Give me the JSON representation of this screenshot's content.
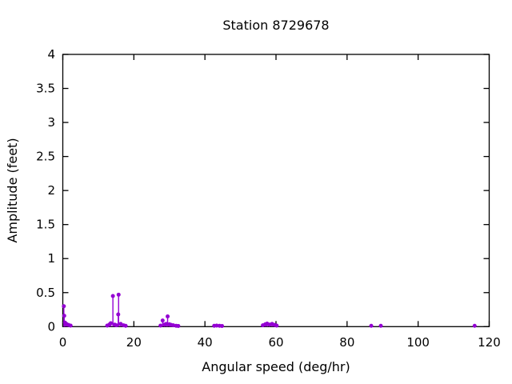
{
  "window": {
    "background": "#ffffff",
    "border_color": "#000000",
    "text_color": "#000000"
  },
  "chart_data": {
    "type": "scatter",
    "style": "points-with-impulse-stems",
    "title": "Station 8729678",
    "xlabel": "Angular speed (deg/hr)",
    "ylabel": "Amplitude (feet)",
    "xlim": [
      0,
      120
    ],
    "ylim": [
      0,
      4
    ],
    "x_ticks": [
      0,
      20,
      40,
      60,
      80,
      100,
      120
    ],
    "x_tick_labels": [
      "0",
      "20",
      "40",
      "60",
      "80",
      "100",
      "120"
    ],
    "y_ticks": [
      0,
      0.5,
      1,
      1.5,
      2,
      2.5,
      3,
      3.5,
      4
    ],
    "y_tick_labels": [
      "0",
      "0.5",
      "1",
      "1.5",
      "2",
      "2.5",
      "3",
      "3.5",
      "4"
    ],
    "grid": false,
    "legend": "none",
    "marker_color": "#9400d3",
    "marker_radius": 2.5,
    "series": [
      {
        "name": "harmonic-constituent-amplitudes",
        "points": [
          [
            0.3,
            0.3
          ],
          [
            0.4,
            0.16
          ],
          [
            0.6,
            0.06
          ],
          [
            1.0,
            0.04
          ],
          [
            1.6,
            0.025
          ],
          [
            2.2,
            0.015
          ],
          [
            12.5,
            0.015
          ],
          [
            13.1,
            0.03
          ],
          [
            13.5,
            0.05
          ],
          [
            14.1,
            0.45
          ],
          [
            14.6,
            0.03
          ],
          [
            15.1,
            0.02
          ],
          [
            15.6,
            0.18
          ],
          [
            15.7,
            0.47
          ],
          [
            16.3,
            0.04
          ],
          [
            17.1,
            0.02
          ],
          [
            17.7,
            0.012
          ],
          [
            27.5,
            0.015
          ],
          [
            28.1,
            0.09
          ],
          [
            28.6,
            0.03
          ],
          [
            29.1,
            0.04
          ],
          [
            29.5,
            0.15
          ],
          [
            30.0,
            0.035
          ],
          [
            30.5,
            0.025
          ],
          [
            31.1,
            0.02
          ],
          [
            31.9,
            0.012
          ],
          [
            32.5,
            0.01
          ],
          [
            42.6,
            0.012
          ],
          [
            43.3,
            0.015
          ],
          [
            44.1,
            0.012
          ],
          [
            44.8,
            0.01
          ],
          [
            56.3,
            0.02
          ],
          [
            57.0,
            0.035
          ],
          [
            57.5,
            0.045
          ],
          [
            58.2,
            0.03
          ],
          [
            58.9,
            0.04
          ],
          [
            59.6,
            0.025
          ],
          [
            60.2,
            0.015
          ],
          [
            86.8,
            0.012
          ],
          [
            89.5,
            0.012
          ],
          [
            115.9,
            0.012
          ]
        ]
      }
    ]
  }
}
